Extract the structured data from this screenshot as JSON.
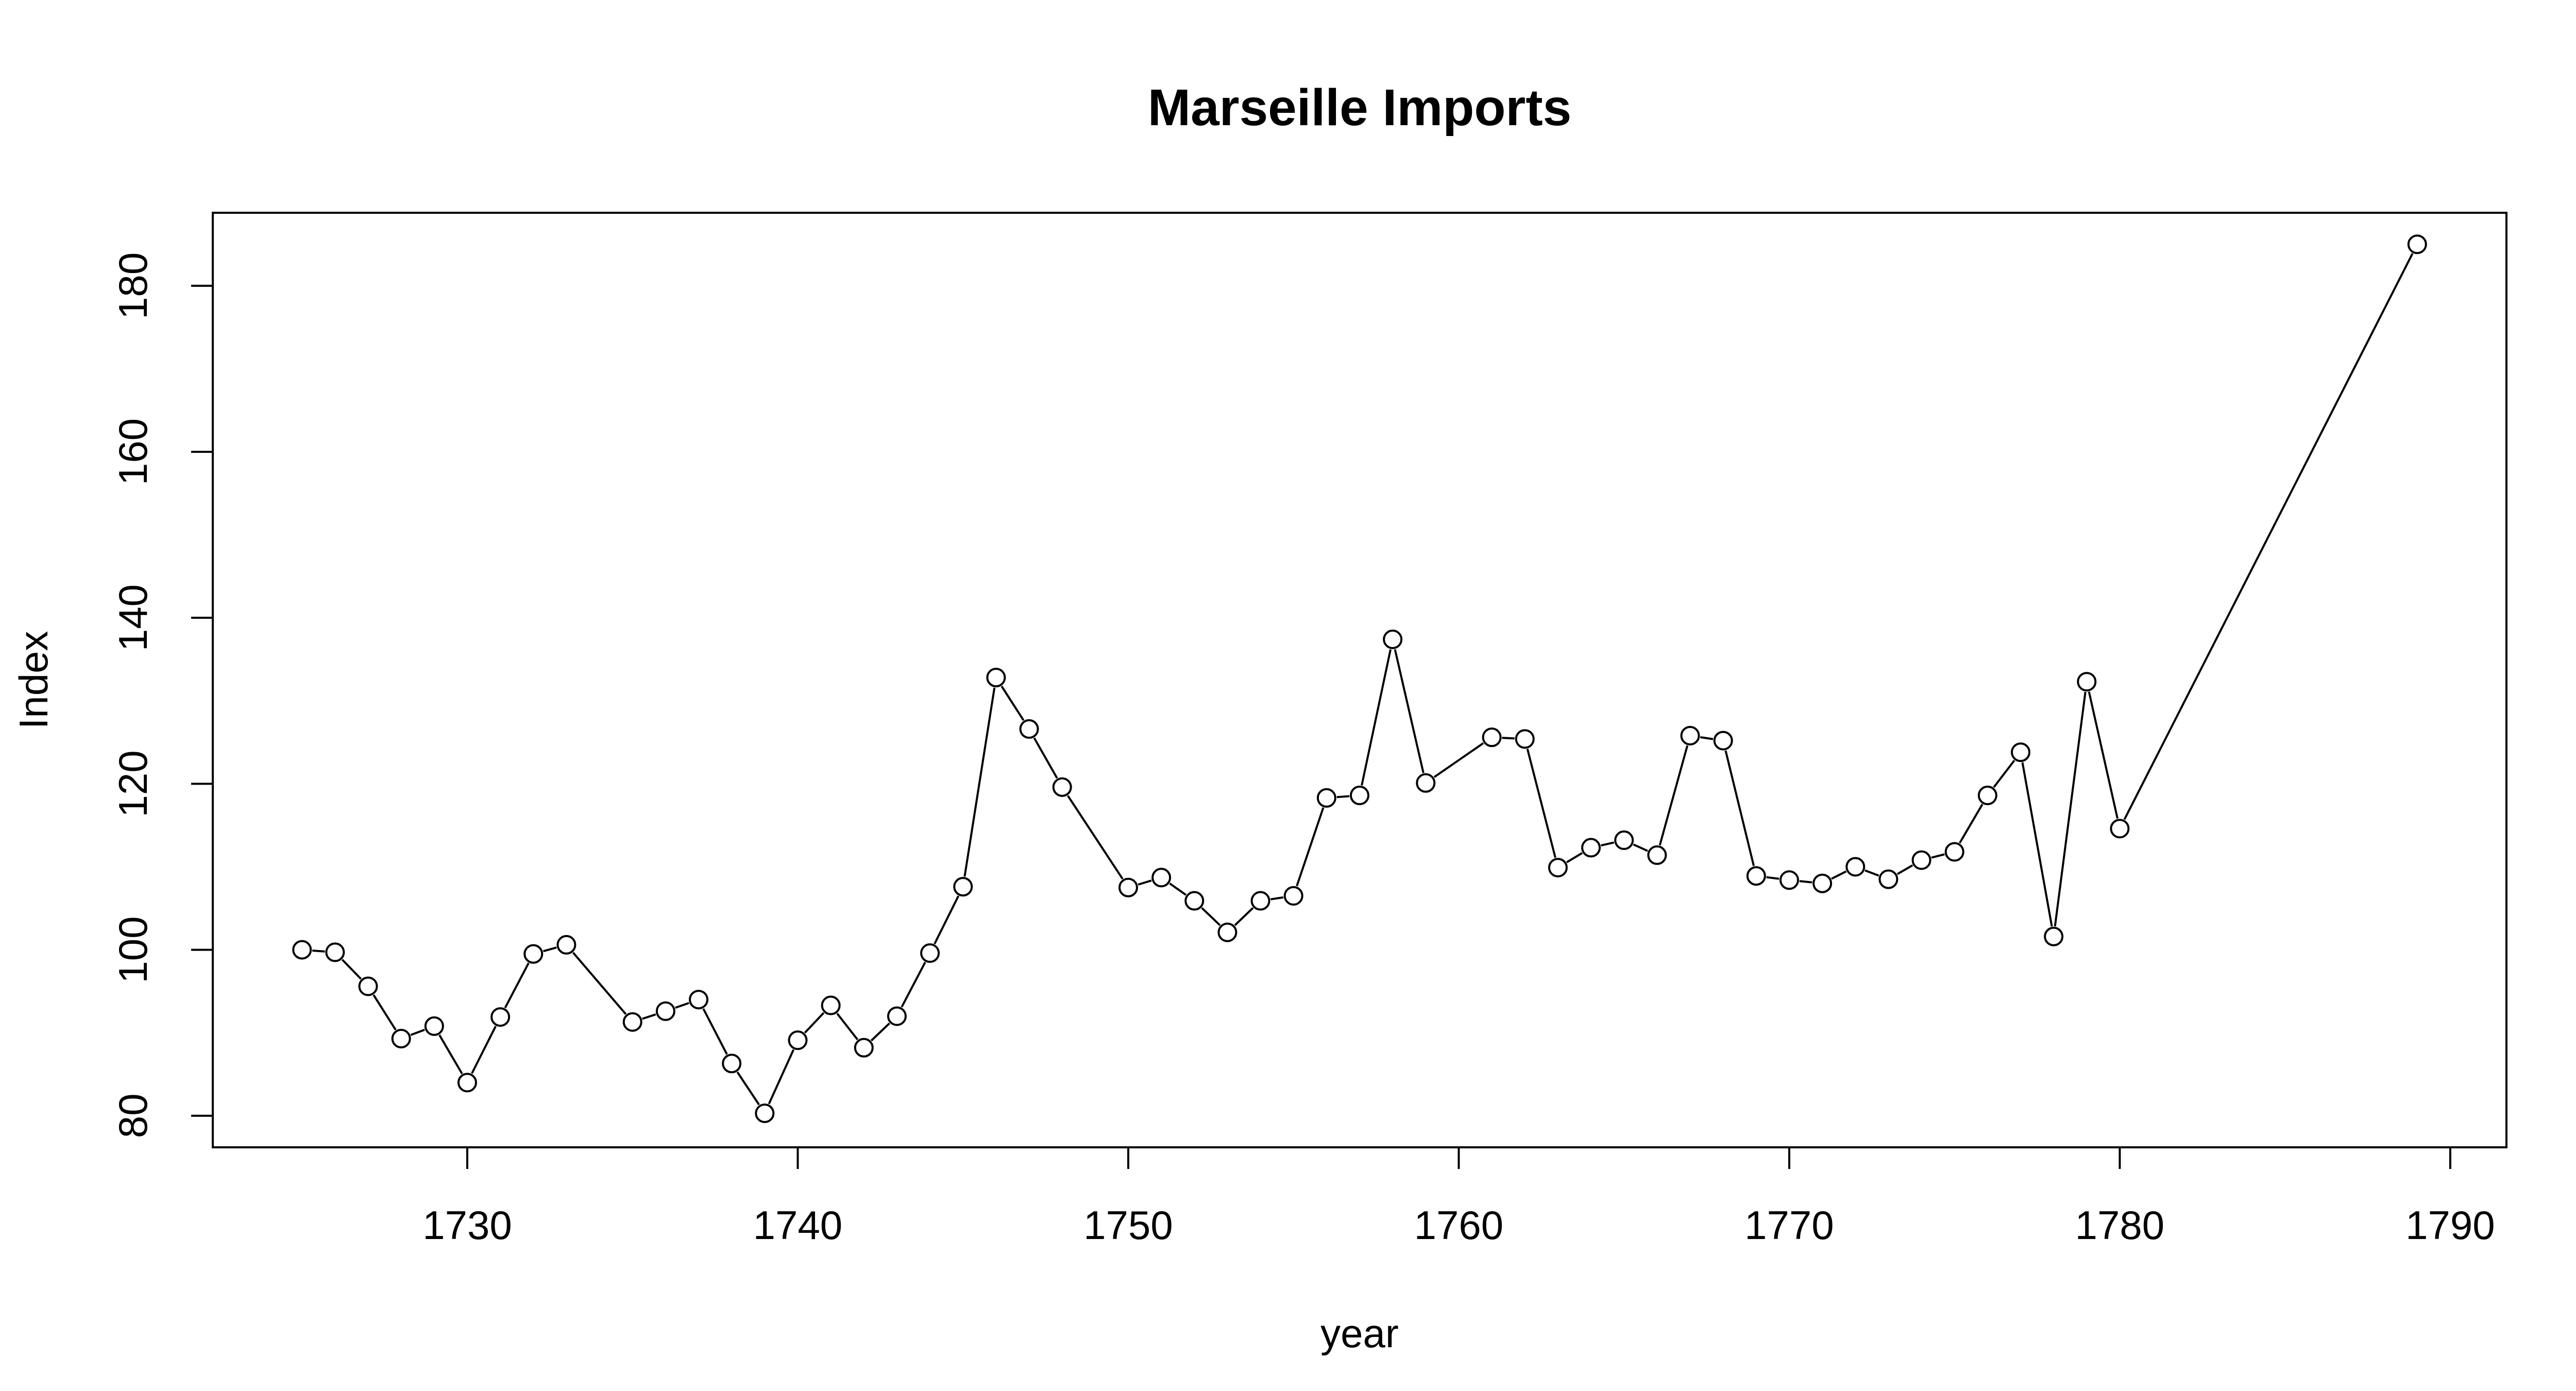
{
  "chart_data": {
    "type": "line",
    "title": "Marseille Imports",
    "xlabel": "year",
    "ylabel": "Index",
    "xlim": [
      1722.3,
      1791.7
    ],
    "ylim": [
      76.2,
      188.8
    ],
    "xticks": [
      1730,
      1740,
      1750,
      1760,
      1770,
      1780,
      1790
    ],
    "yticks": [
      80,
      100,
      120,
      140,
      160,
      180
    ],
    "markers": "open-circle",
    "line_color": "#000000",
    "grid": false,
    "series": [
      {
        "x": [
          1725,
          1726,
          1727,
          1728,
          1729,
          1730,
          1731,
          1732,
          1733,
          1735,
          1736,
          1737,
          1738,
          1739,
          1740,
          1741,
          1742,
          1743,
          1744,
          1745,
          1746,
          1747,
          1748,
          1750,
          1751,
          1752,
          1753,
          1754,
          1755,
          1756,
          1757,
          1758,
          1759,
          1761,
          1762,
          1763,
          1764,
          1765,
          1766,
          1767,
          1768,
          1769,
          1770,
          1771,
          1772,
          1773,
          1774,
          1775,
          1776,
          1777,
          1778,
          1779,
          1780,
          1789
        ],
        "values": [
          100.0,
          99.7,
          95.6,
          89.3,
          90.8,
          84.0,
          91.9,
          99.5,
          100.6,
          91.3,
          92.6,
          94.0,
          86.3,
          80.3,
          89.1,
          93.3,
          88.2,
          92.0,
          99.6,
          107.6,
          132.8,
          126.6,
          119.6,
          107.5,
          108.7,
          105.9,
          102.1,
          105.9,
          106.5,
          118.3,
          118.6,
          137.4,
          120.1,
          125.6,
          125.4,
          109.9,
          112.3,
          113.2,
          111.4,
          125.8,
          125.2,
          108.9,
          108.4,
          108.0,
          110.0,
          108.5,
          110.8,
          111.8,
          118.6,
          123.8,
          101.6,
          132.3,
          114.6,
          185.0
        ]
      }
    ]
  }
}
